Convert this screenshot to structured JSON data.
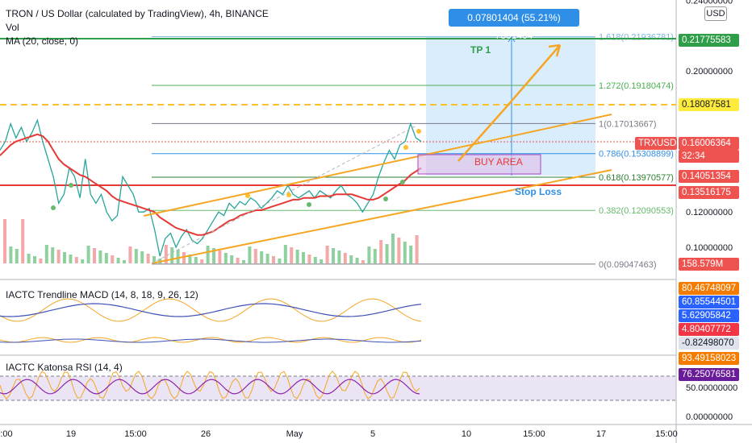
{
  "header": {
    "title": "TRON / US Dollar (calculated by TradingView), 4h, BINANCE",
    "vol": "Vol",
    "ma": "MA (20, close, 0)"
  },
  "price_axis": {
    "unit": "USD",
    "labels": [
      "0.24000000",
      "0.20000000",
      "0.12000000",
      "0.10000000"
    ],
    "macd_ticks": [
      "-0.82498070"
    ],
    "rsi_ticks": [
      "50.00000000",
      "0.00000000"
    ]
  },
  "tags": [
    {
      "text": "0.21775583",
      "bg": "#2e9e48",
      "fg": "#ffffff"
    },
    {
      "text": "0.18087581",
      "bg": "#ffeb3b",
      "fg": "#131722"
    },
    {
      "text": "TRXUSD",
      "bg": "#ef5350",
      "fg": "#ffffff"
    },
    {
      "text": "0.16006364",
      "bg": "#ef5350",
      "fg": "#ffffff"
    },
    {
      "text": "32:34",
      "bg": "#ef5350",
      "fg": "#ffffff"
    },
    {
      "text": "0.14051354",
      "bg": "#ef5350",
      "fg": "#ffffff"
    },
    {
      "text": "0.13516175",
      "bg": "#ef5350",
      "fg": "#ffffff"
    },
    {
      "text": "158.579M",
      "bg": "#ef5350",
      "fg": "#ffffff"
    },
    {
      "text": "80.46748097",
      "bg": "#f57c00",
      "fg": "#ffffff"
    },
    {
      "text": "60.85544501",
      "bg": "#2962ff",
      "fg": "#ffffff"
    },
    {
      "text": "5.62905842",
      "bg": "#2962ff",
      "fg": "#ffffff"
    },
    {
      "text": "4.80407772",
      "bg": "#f23645",
      "fg": "#ffffff"
    },
    {
      "text": "-0.82498070",
      "bg": "#e0e3eb",
      "fg": "#131722"
    },
    {
      "text": "93.49158023",
      "bg": "#f57c00",
      "fg": "#ffffff"
    },
    {
      "text": "76.25076581",
      "bg": "#6a1b9a",
      "fg": "#ffffff"
    }
  ],
  "measurement": "0.07801404 (55.21%) 7801404",
  "annotations": {
    "tp": "TP 1",
    "buy": "BUY AREA",
    "stop": "Stop Loss"
  },
  "indicators": {
    "macd_title": "IACTC Trendline MACD (14, 8, 18, 9, 26, 12)",
    "rsi_title": "IACTC Katonsa RSI (14, 4)"
  },
  "time_axis": [
    ":00",
    "19",
    "15:00",
    "26",
    "May",
    "5",
    "10",
    "15:00",
    "17",
    "15:00"
  ],
  "chart_data": {
    "type": "line",
    "title": "TRON / US Dollar (calculated by TradingView), 4h, BINANCE",
    "ylim": [
      0.085,
      0.245
    ],
    "fib_levels": [
      {
        "label": "1.618(0.21936781)",
        "value": 0.21936781
      },
      {
        "label": "1.272(0.19180474)",
        "value": 0.19180474
      },
      {
        "label": "1(0.17013667)",
        "value": 0.17013667
      },
      {
        "label": "0.786(0.15308899)",
        "value": 0.15308899
      },
      {
        "label": "0.618(0.13970577)",
        "value": 0.13970577
      },
      {
        "label": "0.382(0.12090553)",
        "value": 0.12090553
      },
      {
        "label": "0(0.09047463)",
        "value": 0.09047463
      }
    ],
    "horizontal_lines": [
      {
        "value": 0.21775583,
        "color": "#2e9e48"
      },
      {
        "value": 0.18087581,
        "color": "#ffeb3b"
      },
      {
        "value": 0.13516175,
        "color": "#f23645"
      }
    ],
    "price": [
      0.155,
      0.16,
      0.17,
      0.162,
      0.168,
      0.16,
      0.165,
      0.172,
      0.16,
      0.15,
      0.14,
      0.125,
      0.13,
      0.145,
      0.14,
      0.128,
      0.15,
      0.13,
      0.125,
      0.13,
      0.12,
      0.115,
      0.118,
      0.14,
      0.135,
      0.13,
      0.12,
      0.12,
      0.122,
      0.11,
      0.095,
      0.105,
      0.108,
      0.1,
      0.106,
      0.11,
      0.104,
      0.102,
      0.105,
      0.11,
      0.115,
      0.12,
      0.118,
      0.125,
      0.122,
      0.126,
      0.124,
      0.128,
      0.126,
      0.122,
      0.125,
      0.128,
      0.132,
      0.13,
      0.135,
      0.13,
      0.128,
      0.13,
      0.132,
      0.128,
      0.132,
      0.13,
      0.128,
      0.132,
      0.135,
      0.13,
      0.128,
      0.125,
      0.12,
      0.125,
      0.13,
      0.14,
      0.148,
      0.155,
      0.15,
      0.158,
      0.16,
      0.17,
      0.162,
      0.16
    ],
    "ma": [
      0.152,
      0.155,
      0.158,
      0.16,
      0.161,
      0.162,
      0.163,
      0.164,
      0.163,
      0.16,
      0.155,
      0.15,
      0.147,
      0.145,
      0.143,
      0.141,
      0.14,
      0.138,
      0.136,
      0.134,
      0.132,
      0.129,
      0.127,
      0.126,
      0.125,
      0.124,
      0.123,
      0.122,
      0.121,
      0.12,
      0.117,
      0.115,
      0.113,
      0.111,
      0.11,
      0.109,
      0.108,
      0.107,
      0.107,
      0.108,
      0.109,
      0.111,
      0.113,
      0.115,
      0.116,
      0.118,
      0.119,
      0.12,
      0.121,
      0.121,
      0.122,
      0.123,
      0.124,
      0.125,
      0.126,
      0.127,
      0.127,
      0.128,
      0.128,
      0.128,
      0.129,
      0.129,
      0.129,
      0.13,
      0.13,
      0.13,
      0.13,
      0.129,
      0.128,
      0.127,
      0.127,
      0.128,
      0.13,
      0.132,
      0.134,
      0.136,
      0.138,
      0.141,
      0.143,
      0.145
    ]
  }
}
